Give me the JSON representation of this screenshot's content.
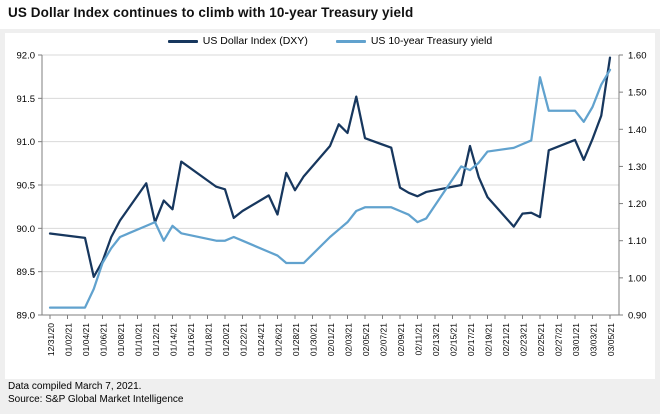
{
  "title": "US Dollar Index continues to climb with 10-year Treasury yield",
  "legend": [
    {
      "label": "US Dollar Index (DXY)",
      "color": "#17375e"
    },
    {
      "label": "US 10-year Treasury yield",
      "color": "#61a2ce"
    }
  ],
  "chart_data": {
    "type": "line",
    "title": "US Dollar Index continues to climb with 10-year Treasury yield",
    "x_axis": {
      "unit": "date",
      "range": [
        "12/31/20",
        "03/05/21"
      ],
      "tick_labels": [
        "12/31/20",
        "01/02/21",
        "01/04/21",
        "01/06/21",
        "01/08/21",
        "01/10/21",
        "01/12/21",
        "01/14/21",
        "01/16/21",
        "01/18/21",
        "01/20/21",
        "01/22/21",
        "01/24/21",
        "01/26/21",
        "01/28/21",
        "01/30/21",
        "02/01/21",
        "02/03/21",
        "02/05/21",
        "02/07/21",
        "02/09/21",
        "02/11/21",
        "02/13/21",
        "02/15/21",
        "02/17/21",
        "02/19/21",
        "02/21/21",
        "02/23/21",
        "02/25/21",
        "02/27/21",
        "03/01/21",
        "03/03/21",
        "03/05/21"
      ],
      "tick_day_step": 2
    },
    "left_axis": {
      "min": 89.0,
      "max": 92.0,
      "tick_labels": [
        "89.0",
        "89.5",
        "90.0",
        "90.5",
        "91.0",
        "91.5",
        "92.0"
      ],
      "series": "US Dollar Index (DXY)"
    },
    "right_axis": {
      "min": 0.9,
      "max": 1.6,
      "tick_labels": [
        "0.90",
        "1.00",
        "1.10",
        "1.20",
        "1.30",
        "1.40",
        "1.50",
        "1.60"
      ],
      "series": "US 10-year Treasury yield"
    },
    "grid": "horizontal-only",
    "legend_position": "top-center",
    "dates": [
      "12/31/20",
      "01/04/21",
      "01/05/21",
      "01/06/21",
      "01/07/21",
      "01/08/21",
      "01/11/21",
      "01/12/21",
      "01/13/21",
      "01/14/21",
      "01/15/21",
      "01/19/21",
      "01/20/21",
      "01/21/21",
      "01/22/21",
      "01/25/21",
      "01/26/21",
      "01/27/21",
      "01/28/21",
      "01/29/21",
      "02/01/21",
      "02/02/21",
      "02/03/21",
      "02/04/21",
      "02/05/21",
      "02/08/21",
      "02/09/21",
      "02/10/21",
      "02/11/21",
      "02/12/21",
      "02/16/21",
      "02/17/21",
      "02/18/21",
      "02/19/21",
      "02/22/21",
      "02/23/21",
      "02/24/21",
      "02/25/21",
      "02/26/21",
      "03/01/21",
      "03/02/21",
      "03/03/21",
      "03/04/21",
      "03/05/21"
    ],
    "day_index": [
      0,
      4,
      5,
      6,
      7,
      8,
      11,
      12,
      13,
      14,
      15,
      19,
      20,
      21,
      22,
      25,
      26,
      27,
      28,
      29,
      32,
      33,
      34,
      35,
      36,
      39,
      40,
      41,
      42,
      43,
      47,
      48,
      49,
      50,
      53,
      54,
      55,
      56,
      57,
      60,
      61,
      62,
      63,
      64
    ],
    "series": [
      {
        "name": "US Dollar Index (DXY)",
        "axis": "left",
        "color": "#17375e",
        "values": [
          89.94,
          89.89,
          89.44,
          89.62,
          89.9,
          90.09,
          90.52,
          90.07,
          90.32,
          90.22,
          90.77,
          90.48,
          90.45,
          90.12,
          90.2,
          90.38,
          90.16,
          90.64,
          90.44,
          90.6,
          90.95,
          91.2,
          91.1,
          91.52,
          91.04,
          90.93,
          90.47,
          90.41,
          90.37,
          90.42,
          90.5,
          90.95,
          90.59,
          90.36,
          90.02,
          90.17,
          90.18,
          90.13,
          90.9,
          91.02,
          90.79,
          91.03,
          91.3,
          91.97
        ]
      },
      {
        "name": "US 10-year Treasury yield",
        "axis": "right",
        "color": "#61a2ce",
        "values": [
          0.92,
          0.92,
          0.97,
          1.04,
          1.08,
          1.11,
          1.14,
          1.15,
          1.1,
          1.14,
          1.12,
          1.1,
          1.1,
          1.11,
          1.1,
          1.07,
          1.06,
          1.04,
          1.04,
          1.04,
          1.11,
          1.13,
          1.15,
          1.18,
          1.19,
          1.19,
          1.18,
          1.17,
          1.15,
          1.16,
          1.3,
          1.29,
          1.31,
          1.34,
          1.35,
          1.36,
          1.37,
          1.54,
          1.45,
          1.45,
          1.42,
          1.46,
          1.52,
          1.56
        ]
      }
    ]
  },
  "footer": {
    "line1": "Data compiled March 7, 2021.",
    "line2": "Source: S&P Global Market Intelligence"
  },
  "colors": {
    "dxy_line": "#17375e",
    "yield_line": "#61a2ce",
    "gridline": "#d9d9d9",
    "axis": "#7f7f7f",
    "panel_bg": "#efefef",
    "card_bg": "#ffffff"
  }
}
